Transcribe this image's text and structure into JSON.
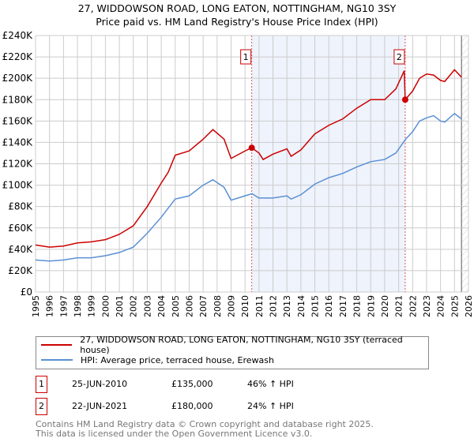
{
  "title_line1": "27, WIDDOWSON ROAD, LONG EATON, NOTTINGHAM, NG10 3SY",
  "title_line2": "Price paid vs. HM Land Registry's House Price Index (HPI)",
  "chart_data": {
    "type": "line",
    "xlim": [
      1995,
      2026
    ],
    "ylim": [
      0,
      240000
    ],
    "yticks": [
      0,
      20000,
      40000,
      60000,
      80000,
      100000,
      120000,
      140000,
      160000,
      180000,
      200000,
      220000,
      240000
    ],
    "ytick_labels": [
      "£0",
      "£20K",
      "£40K",
      "£60K",
      "£80K",
      "£100K",
      "£120K",
      "£140K",
      "£160K",
      "£180K",
      "£200K",
      "£220K",
      "£240K"
    ],
    "xticks": [
      1995,
      1996,
      1997,
      1998,
      1999,
      2000,
      2001,
      2002,
      2003,
      2004,
      2005,
      2006,
      2007,
      2008,
      2009,
      2010,
      2011,
      2012,
      2013,
      2014,
      2015,
      2016,
      2017,
      2018,
      2019,
      2020,
      2021,
      2022,
      2023,
      2024,
      2025,
      2026
    ],
    "grid": true,
    "shaded_range": [
      2010.48,
      2021.47
    ],
    "hatched_from": 2025.5,
    "series": [
      {
        "name": "27, WIDDOWSON ROAD, LONG EATON, NOTTINGHAM, NG10 3SY (terraced house)",
        "color": "#cc0000",
        "x": [
          1995,
          1996,
          1997,
          1998,
          1999,
          2000,
          2001,
          2002,
          2003,
          2004,
          2004.5,
          2005,
          2006,
          2007,
          2007.7,
          2008.5,
          2009,
          2010,
          2010.48,
          2011,
          2011.3,
          2012,
          2013,
          2013.3,
          2014,
          2015,
          2016,
          2017,
          2018,
          2019,
          2020,
          2020.8,
          2021.4,
          2021.47,
          2022,
          2022.5,
          2023,
          2023.5,
          2024,
          2024.3,
          2025,
          2025.5
        ],
        "y": [
          44000,
          42000,
          43000,
          46000,
          47000,
          49000,
          54000,
          62000,
          80000,
          102000,
          112000,
          128000,
          132000,
          143000,
          152000,
          143000,
          125000,
          132000,
          135000,
          130000,
          124000,
          129000,
          134000,
          127000,
          133000,
          148000,
          156000,
          162000,
          172000,
          180000,
          180000,
          190000,
          207000,
          180000,
          188000,
          200000,
          204000,
          203000,
          198000,
          197000,
          208000,
          201000
        ]
      },
      {
        "name": "HPI: Average price, terraced house, Erewash",
        "color": "#5b8fd4",
        "x": [
          1995,
          1996,
          1997,
          1998,
          1999,
          2000,
          2001,
          2002,
          2003,
          2004,
          2005,
          2006,
          2007,
          2007.7,
          2008.5,
          2009,
          2010,
          2010.5,
          2011,
          2012,
          2013,
          2013.3,
          2014,
          2015,
          2016,
          2017,
          2018,
          2019,
          2020,
          2020.8,
          2021.5,
          2022,
          2022.5,
          2023,
          2023.5,
          2024,
          2024.3,
          2025,
          2025.5
        ],
        "y": [
          30000,
          29000,
          30000,
          32000,
          32000,
          34000,
          37000,
          42000,
          55000,
          70000,
          87000,
          90000,
          100000,
          105000,
          98000,
          86000,
          90000,
          92000,
          88000,
          88000,
          90000,
          87000,
          91000,
          101000,
          107000,
          111000,
          117000,
          122000,
          124000,
          130000,
          143000,
          150000,
          160000,
          163000,
          165000,
          160000,
          159000,
          167000,
          162000
        ]
      }
    ],
    "annotations": [
      {
        "label": "1",
        "x": 2010.48,
        "y": 135000
      },
      {
        "label": "2",
        "x": 2021.47,
        "y": 180000
      }
    ]
  },
  "legend": {
    "red": "27, WIDDOWSON ROAD, LONG EATON, NOTTINGHAM, NG10 3SY (terraced house)",
    "blue": "HPI: Average price, terraced house, Erewash"
  },
  "sales": [
    {
      "num": "1",
      "date": "25-JUN-2010",
      "price": "£135,000",
      "hpi": "46% ↑ HPI"
    },
    {
      "num": "2",
      "date": "22-JUN-2021",
      "price": "£180,000",
      "hpi": "24% ↑ HPI"
    }
  ],
  "footer1": "Contains HM Land Registry data © Crown copyright and database right 2025.",
  "footer2": "This data is licensed under the Open Government Licence v3.0."
}
